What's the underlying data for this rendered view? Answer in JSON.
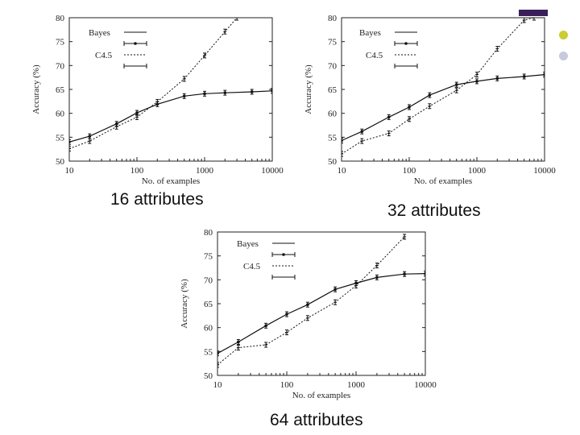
{
  "captions": [
    "16 attributes",
    "32 attributes",
    "64 attributes"
  ],
  "decor": {
    "bullet_colors": [
      "#cccc33",
      "#c8c8e0"
    ],
    "accent": "#3a1f5a"
  },
  "chart_data": [
    {
      "type": "line",
      "xscale": "log",
      "xlim": [
        10,
        10000
      ],
      "ylim": [
        50,
        80
      ],
      "xticks": [
        10,
        100,
        1000,
        10000
      ],
      "xtick_labels": [
        "10",
        "100",
        "1000",
        "10000"
      ],
      "yticks": [
        50,
        55,
        60,
        65,
        70,
        75,
        80
      ],
      "ytick_labels": [
        "50",
        "55",
        "60",
        "65",
        "70",
        "75",
        "80"
      ],
      "xlabel": "No. of examples",
      "ylabel": "Accuracy (%)",
      "legend": [
        "Bayes",
        "C4.5"
      ],
      "series": [
        {
          "name": "Bayes",
          "x": [
            10,
            20,
            50,
            100,
            200,
            500,
            1000,
            2000,
            5000,
            10000
          ],
          "y": [
            54,
            55.2,
            57.8,
            60.1,
            61.9,
            63.6,
            64.1,
            64.3,
            64.5,
            64.7
          ]
        },
        {
          "name": "C4.5",
          "x": [
            10,
            20,
            50,
            100,
            200,
            500,
            1000,
            2000,
            3000
          ],
          "y": [
            52.6,
            54.2,
            57.2,
            59.2,
            62.4,
            67.2,
            72.1,
            77.1,
            80
          ]
        }
      ]
    },
    {
      "type": "line",
      "xscale": "log",
      "xlim": [
        10,
        10000
      ],
      "ylim": [
        50,
        80
      ],
      "xticks": [
        10,
        100,
        1000,
        10000
      ],
      "xtick_labels": [
        "10",
        "100",
        "1000",
        "10000"
      ],
      "yticks": [
        50,
        55,
        60,
        65,
        70,
        75,
        80
      ],
      "ytick_labels": [
        "50",
        "55",
        "60",
        "65",
        "70",
        "75",
        "80"
      ],
      "xlabel": "No. of examples",
      "ylabel": "Accuracy (%)",
      "legend": [
        "Bayes",
        "C4.5"
      ],
      "series": [
        {
          "name": "Bayes",
          "x": [
            10,
            20,
            50,
            100,
            200,
            500,
            1000,
            2000,
            5000,
            10000
          ],
          "y": [
            54.3,
            56.2,
            59.2,
            61.3,
            63.8,
            66,
            66.7,
            67.3,
            67.7,
            68.1
          ]
        },
        {
          "name": "C4.5",
          "x": [
            10,
            20,
            50,
            100,
            200,
            500,
            1000,
            2000,
            5000,
            7000
          ],
          "y": [
            51.5,
            54.2,
            55.8,
            58.8,
            61.5,
            64.8,
            68.1,
            73.5,
            79.5,
            80
          ]
        }
      ]
    },
    {
      "type": "line",
      "xscale": "log",
      "xlim": [
        10,
        10000
      ],
      "ylim": [
        50,
        80
      ],
      "xticks": [
        10,
        100,
        1000,
        10000
      ],
      "xtick_labels": [
        "10",
        "100",
        "1000",
        "10000"
      ],
      "yticks": [
        50,
        55,
        60,
        65,
        70,
        75,
        80
      ],
      "ytick_labels": [
        "50",
        "55",
        "60",
        "65",
        "70",
        "75",
        "80"
      ],
      "xlabel": "No. of examples",
      "ylabel": "Accuracy (%)",
      "legend": [
        "Bayes",
        "C4.5"
      ],
      "series": [
        {
          "name": "Bayes",
          "x": [
            10,
            20,
            50,
            100,
            200,
            500,
            1000,
            2000,
            5000,
            10000
          ],
          "y": [
            54.6,
            57,
            60.4,
            62.8,
            64.8,
            68,
            69.3,
            70.5,
            71.2,
            71.3
          ]
        },
        {
          "name": "C4.5",
          "x": [
            10,
            20,
            50,
            100,
            200,
            500,
            1000,
            2000,
            5000
          ],
          "y": [
            52.2,
            55.8,
            56.4,
            59,
            62,
            65.3,
            68.8,
            73,
            79
          ]
        }
      ]
    }
  ]
}
